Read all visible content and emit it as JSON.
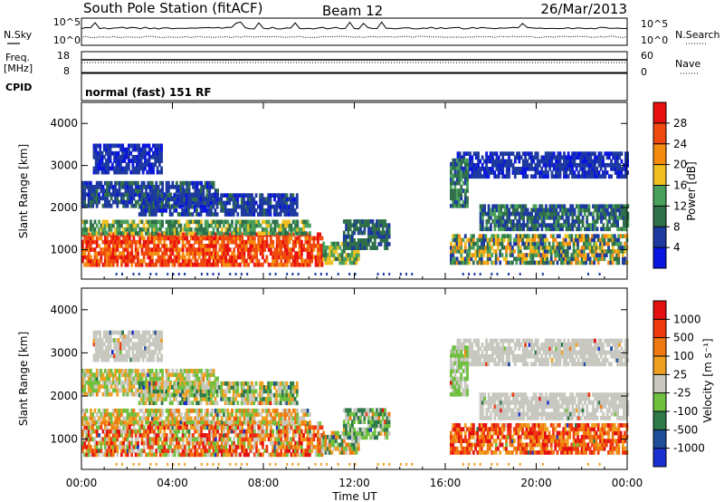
{
  "header": {
    "station": "South Pole Station (fitACF)",
    "beam": "Beam 12",
    "date": "26/Mar/2013"
  },
  "summary": {
    "nsky_label": "N.Sky",
    "nsearch_label": "N.Search",
    "noise_ticks": [
      "10^5",
      "10^0"
    ],
    "freq_label_1": "Freq.",
    "freq_label_2": "[MHz]",
    "freq_ticks": [
      "18",
      "8"
    ],
    "nave_label": "Nave",
    "nave_ticks": [
      "60",
      "0"
    ],
    "cpid_label": "CPID",
    "cpid_value": "normal (fast) 151 RF"
  },
  "colors": {
    "power_scale": [
      "#0a14e0",
      "#1e3aa0",
      "#2f6f4a",
      "#4aa05a",
      "#f0c020",
      "#f58c10",
      "#f04a10",
      "#e81010"
    ],
    "velocity_scale": [
      "#1a2fd0",
      "#1e4e9a",
      "#2e7a4a",
      "#70c040",
      "#c8c8c0",
      "#f0a020",
      "#f07810",
      "#f03a10",
      "#e41010"
    ]
  },
  "chart_data": [
    {
      "type": "heatmap",
      "name": "power",
      "xlabel": "Time UT",
      "ylabel": "Slant Range [km]",
      "xlim": [
        0,
        24
      ],
      "ylim": [
        300,
        4500
      ],
      "x_ticks": [
        "00:00",
        "04:00",
        "08:00",
        "12:00",
        "16:00",
        "20:00",
        "00:00"
      ],
      "y_ticks": [
        "1000",
        "2000",
        "3000",
        "4000"
      ],
      "colorbar_label": "Power [dB]",
      "colorbar_ticks": [
        "28",
        "24",
        "20",
        "16",
        "12",
        "8",
        "4"
      ],
      "colorbar_range": [
        0,
        32
      ]
    },
    {
      "type": "heatmap",
      "name": "velocity",
      "xlabel": "Time UT",
      "ylabel": "Slant Range [km]",
      "xlim": [
        0,
        24
      ],
      "ylim": [
        300,
        4500
      ],
      "x_ticks": [
        "00:00",
        "04:00",
        "08:00",
        "12:00",
        "16:00",
        "20:00",
        "00:00"
      ],
      "y_ticks": [
        "1000",
        "2000",
        "3000",
        "4000"
      ],
      "colorbar_label": "Velocity [m s⁻¹]",
      "colorbar_ticks": [
        "1000",
        "500",
        "100",
        "25",
        "-25",
        "-100",
        "-500",
        "-1000"
      ]
    }
  ]
}
